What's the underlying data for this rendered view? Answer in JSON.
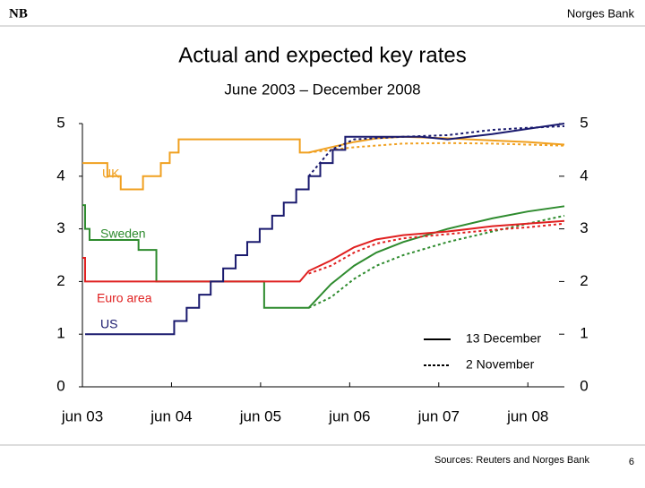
{
  "header": {
    "logo": "NB",
    "org": "Norges Bank"
  },
  "footer": {
    "source": "Sources: Reuters and Norges Bank",
    "page": "6"
  },
  "chart_data": {
    "type": "line",
    "title": "Actual and expected key rates",
    "subtitle": "June 2003 – December 2008",
    "xlim": [
      2003.42,
      2008.83
    ],
    "xticks": [
      {
        "value": 2003.42,
        "label": "jun 03"
      },
      {
        "value": 2004.42,
        "label": "jun 04"
      },
      {
        "value": 2005.42,
        "label": "jun 05"
      },
      {
        "value": 2006.42,
        "label": "jun 06"
      },
      {
        "value": 2007.42,
        "label": "jun 07"
      },
      {
        "value": 2008.42,
        "label": "jun 08"
      }
    ],
    "ylim": [
      0,
      5
    ],
    "yticks": [
      0,
      1,
      2,
      3,
      4,
      5
    ],
    "y2lim": [
      0,
      5
    ],
    "y2ticks": [
      0,
      1,
      2,
      3,
      4,
      5
    ],
    "legend": [
      {
        "label": "13 December",
        "dash": false
      },
      {
        "label": "2 November",
        "dash": true
      }
    ],
    "annotations": [
      {
        "text": "UK",
        "color": "#f0a020"
      },
      {
        "text": "Sweden",
        "color": "#2e8b2e"
      },
      {
        "text": "Euro area",
        "color": "#e02020"
      },
      {
        "text": "US",
        "color": "#1a1a6e"
      }
    ],
    "series": [
      {
        "color": "#f0a020",
        "dash": false,
        "x": [
          2003.42,
          2003.7,
          2003.7,
          2003.85,
          2003.85,
          2004.1,
          2004.1,
          2004.3,
          2004.3,
          2004.4,
          2004.4,
          2004.5,
          2004.5,
          2005.86,
          2005.86,
          2005.96,
          2006.21,
          2006.47,
          2006.72,
          2007.02,
          2007.52,
          2008.02,
          2008.42,
          2008.83
        ],
        "values": [
          4.25,
          4.25,
          4.0,
          4.0,
          3.75,
          3.75,
          4.0,
          4.0,
          4.25,
          4.25,
          4.45,
          4.45,
          4.7,
          4.7,
          4.45,
          4.45,
          4.55,
          4.65,
          4.72,
          4.75,
          4.72,
          4.68,
          4.65,
          4.6
        ]
      },
      {
        "color": "#f0a020",
        "dash": true,
        "x": [
          2005.96,
          2006.21,
          2006.47,
          2007.02,
          2007.52,
          2008.02,
          2008.83
        ],
        "values": [
          4.45,
          4.5,
          4.55,
          4.62,
          4.63,
          4.62,
          4.58
        ]
      },
      {
        "color": "#2e8b2e",
        "dash": false,
        "x": [
          2003.42,
          2003.45,
          2003.45,
          2003.5,
          2003.5,
          2004.05,
          2004.05,
          2004.25,
          2004.25,
          2005.46,
          2005.46,
          2005.96,
          2006.21,
          2006.47,
          2006.72,
          2007.02,
          2007.52,
          2008.02,
          2008.42,
          2008.83
        ],
        "values": [
          3.45,
          3.45,
          3.0,
          3.0,
          2.79,
          2.79,
          2.6,
          2.6,
          2.0,
          2.0,
          1.5,
          1.5,
          1.95,
          2.3,
          2.55,
          2.75,
          3.0,
          3.2,
          3.33,
          3.43
        ]
      },
      {
        "color": "#2e8b2e",
        "dash": true,
        "x": [
          2005.96,
          2006.21,
          2006.47,
          2006.72,
          2007.02,
          2007.52,
          2008.02,
          2008.42,
          2008.83
        ],
        "values": [
          1.5,
          1.7,
          2.05,
          2.3,
          2.5,
          2.75,
          2.95,
          3.1,
          3.25
        ]
      },
      {
        "color": "#e02020",
        "dash": false,
        "x": [
          2003.42,
          2003.45,
          2003.45,
          2005.86,
          2005.96,
          2006.21,
          2006.47,
          2006.72,
          2007.02,
          2007.52,
          2008.02,
          2008.42,
          2008.83
        ],
        "values": [
          2.45,
          2.45,
          2.0,
          2.0,
          2.2,
          2.4,
          2.65,
          2.8,
          2.88,
          2.95,
          3.05,
          3.1,
          3.15
        ]
      },
      {
        "color": "#e02020",
        "dash": true,
        "x": [
          2005.96,
          2006.21,
          2006.47,
          2006.72,
          2007.02,
          2007.52,
          2008.02,
          2008.42,
          2008.83
        ],
        "values": [
          2.15,
          2.3,
          2.55,
          2.72,
          2.82,
          2.9,
          2.98,
          3.03,
          3.1
        ]
      },
      {
        "color": "#1a1a6e",
        "dash": false,
        "x": [
          2003.45,
          2004.45,
          2004.45,
          2004.59,
          2004.59,
          2004.73,
          2004.73,
          2004.86,
          2004.86,
          2005.0,
          2005.0,
          2005.14,
          2005.14,
          2005.27,
          2005.27,
          2005.41,
          2005.41,
          2005.55,
          2005.55,
          2005.68,
          2005.68,
          2005.82,
          2005.82,
          2005.96,
          2005.96,
          2006.09,
          2006.09,
          2006.23,
          2006.23,
          2006.37,
          2006.37,
          2007.22,
          2007.52,
          2008.02,
          2008.42,
          2008.83
        ],
        "values": [
          1.0,
          1.0,
          1.25,
          1.25,
          1.5,
          1.5,
          1.75,
          1.75,
          2.0,
          2.0,
          2.25,
          2.25,
          2.5,
          2.5,
          2.75,
          2.75,
          3.0,
          3.0,
          3.25,
          3.25,
          3.5,
          3.5,
          3.75,
          3.75,
          4.0,
          4.0,
          4.25,
          4.25,
          4.5,
          4.5,
          4.75,
          4.75,
          4.7,
          4.8,
          4.9,
          5.0
        ]
      },
      {
        "color": "#1a1a6e",
        "dash": true,
        "x": [
          2005.96,
          2006.21,
          2006.47,
          2007.02,
          2007.52,
          2008.02,
          2008.42,
          2008.83
        ],
        "values": [
          4.0,
          4.5,
          4.7,
          4.75,
          4.78,
          4.88,
          4.92,
          4.95
        ]
      }
    ]
  }
}
